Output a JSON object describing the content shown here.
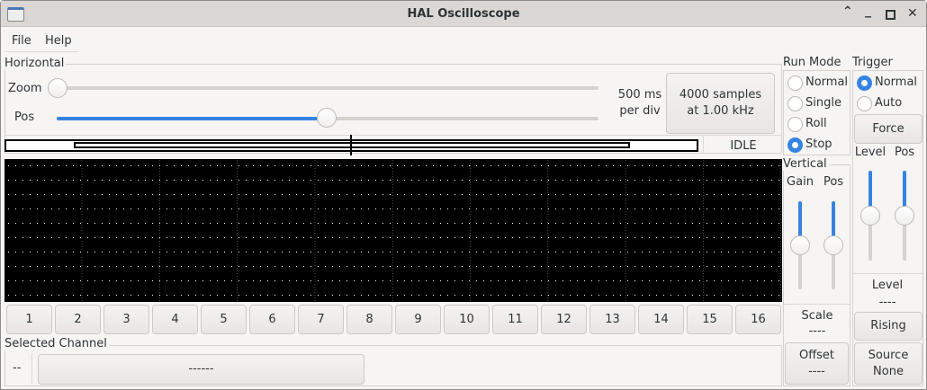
{
  "window": {
    "title": "HAL Oscilloscope",
    "controls": [
      "shade",
      "minimize",
      "maximize",
      "close"
    ]
  },
  "menu": {
    "items": [
      "File",
      "Help"
    ]
  },
  "horizontal": {
    "label": "Horizontal",
    "zoom_label": "Zoom",
    "pos_label": "Pos",
    "zoom_value": 0,
    "pos_value": 0.5,
    "timebase_line1": "500 ms",
    "timebase_line2": "per div",
    "samples_line1": "4000 samples",
    "samples_line2": "at 1.00 kHz",
    "status": "IDLE"
  },
  "channels": [
    "1",
    "2",
    "3",
    "4",
    "5",
    "6",
    "7",
    "8",
    "9",
    "10",
    "11",
    "12",
    "13",
    "14",
    "15",
    "16"
  ],
  "selected_channel": {
    "label": "Selected Channel",
    "number": "--",
    "name": "------"
  },
  "run_mode": {
    "label": "Run Mode",
    "options": [
      "Normal",
      "Single",
      "Roll",
      "Stop"
    ],
    "selected": "Stop"
  },
  "vertical": {
    "label": "Vertical",
    "gain_label": "Gain",
    "pos_label": "Pos",
    "gain_value": 0.5,
    "pos_value": 0.5,
    "scale_label": "Scale",
    "scale_value": "----",
    "offset_label": "Offset",
    "offset_value": "----"
  },
  "trigger": {
    "label": "Trigger",
    "options": [
      "Normal",
      "Auto"
    ],
    "selected": "Normal",
    "force_label": "Force",
    "level_label": "Level",
    "pos_label": "Pos",
    "level_value": 0.5,
    "pos_value": 0.5,
    "level_readout_label": "Level",
    "level_readout": "----",
    "edge_label": "Rising",
    "source_label": "Source",
    "source_value": "None"
  },
  "colors": {
    "accent": "#3584e4",
    "scope_bg": "#000000",
    "grid": "#ffffff"
  }
}
